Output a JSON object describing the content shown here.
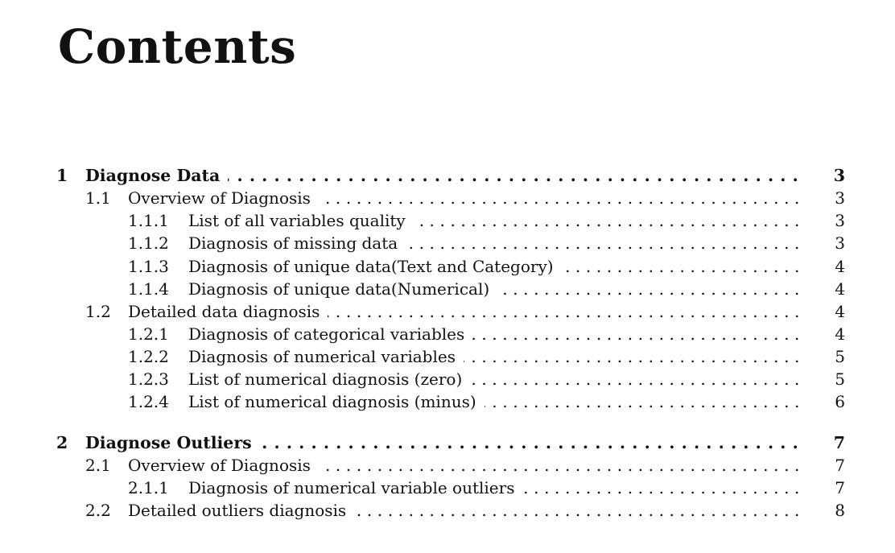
{
  "page_title": "Contents",
  "toc": [
    {
      "level": "chapter",
      "number": "1",
      "title": "Diagnose Data",
      "page": "3"
    },
    {
      "level": "section",
      "number": "1.1",
      "title": "Overview of Diagnosis",
      "page": "3"
    },
    {
      "level": "subsection",
      "number": "1.1.1",
      "title": "List of all variables quality",
      "page": "3"
    },
    {
      "level": "subsection",
      "number": "1.1.2",
      "title": "Diagnosis of missing data",
      "page": "3"
    },
    {
      "level": "subsection",
      "number": "1.1.3",
      "title": "Diagnosis of unique data(Text and Category)",
      "page": "4"
    },
    {
      "level": "subsection",
      "number": "1.1.4",
      "title": "Diagnosis of unique data(Numerical)",
      "page": "4"
    },
    {
      "level": "section",
      "number": "1.2",
      "title": "Detailed data diagnosis",
      "page": "4"
    },
    {
      "level": "subsection",
      "number": "1.2.1",
      "title": "Diagnosis of categorical variables",
      "page": "4"
    },
    {
      "level": "subsection",
      "number": "1.2.2",
      "title": "Diagnosis of numerical variables",
      "page": "5"
    },
    {
      "level": "subsection",
      "number": "1.2.3",
      "title": "List of numerical diagnosis (zero)",
      "page": "5"
    },
    {
      "level": "subsection",
      "number": "1.2.4",
      "title": "List of numerical diagnosis (minus)",
      "page": "6"
    },
    {
      "level": "chapter",
      "number": "2",
      "title": "Diagnose Outliers",
      "page": "7"
    },
    {
      "level": "section",
      "number": "2.1",
      "title": "Overview of Diagnosis",
      "page": "7"
    },
    {
      "level": "subsection",
      "number": "2.1.1",
      "title": "Diagnosis of numerical variable outliers",
      "page": "7"
    },
    {
      "level": "section",
      "number": "2.2",
      "title": "Detailed outliers diagnosis",
      "page": "8"
    }
  ]
}
